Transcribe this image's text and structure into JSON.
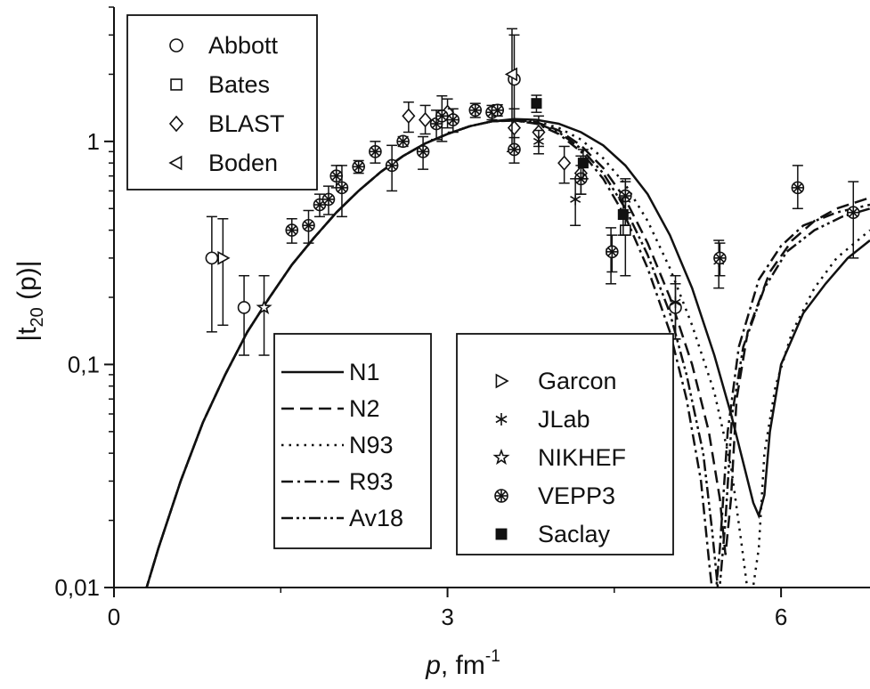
{
  "chart_data": {
    "type": "scatter",
    "title": "",
    "xlabel": {
      "main": "p",
      "sep": ", fm",
      "sup": "-1"
    },
    "ylabel": {
      "pre": "|t",
      "sub": "20",
      "post": " (p)|"
    },
    "xlim": [
      0,
      6.8
    ],
    "ylim": [
      0.01,
      4
    ],
    "yscale": "log",
    "x_ticks": [
      {
        "value": 0,
        "label": "0"
      },
      {
        "value": 3,
        "label": "3"
      },
      {
        "value": 6,
        "label": "6"
      }
    ],
    "y_ticks": [
      {
        "value": 0.01,
        "label": "0,01"
      },
      {
        "value": 0.1,
        "label": "0,1"
      },
      {
        "value": 1,
        "label": "1"
      }
    ],
    "model_legend": [
      {
        "name": "N1",
        "dash": "solid"
      },
      {
        "name": "N2",
        "dash": "dash"
      },
      {
        "name": "N93",
        "dash": "dot"
      },
      {
        "name": "R93",
        "dash": "dashdot"
      },
      {
        "name": "Av18",
        "dash": "dashdotdot"
      }
    ],
    "marker_legend_left": [
      {
        "name": "Abbott",
        "marker": "circle"
      },
      {
        "name": "Bates",
        "marker": "square"
      },
      {
        "name": "BLAST",
        "marker": "diamond"
      },
      {
        "name": "Boden",
        "marker": "triangle-left"
      }
    ],
    "marker_legend_right": [
      {
        "name": "Garcon",
        "marker": "triangle-right"
      },
      {
        "name": "JLab",
        "marker": "asterisk"
      },
      {
        "name": "NIKHEF",
        "marker": "star"
      },
      {
        "name": "VEPP3",
        "marker": "circle-plus"
      },
      {
        "name": "Saclay",
        "marker": "filled-square"
      }
    ],
    "curves": [
      {
        "name": "N1",
        "dash": "solid",
        "points": [
          [
            0.28,
            0.0095
          ],
          [
            0.4,
            0.015
          ],
          [
            0.6,
            0.03
          ],
          [
            0.8,
            0.055
          ],
          [
            1.0,
            0.09
          ],
          [
            1.2,
            0.14
          ],
          [
            1.4,
            0.2
          ],
          [
            1.6,
            0.28
          ],
          [
            1.8,
            0.37
          ],
          [
            2.0,
            0.48
          ],
          [
            2.2,
            0.6
          ],
          [
            2.4,
            0.73
          ],
          [
            2.6,
            0.86
          ],
          [
            2.8,
            0.98
          ],
          [
            3.0,
            1.08
          ],
          [
            3.2,
            1.17
          ],
          [
            3.4,
            1.23
          ],
          [
            3.6,
            1.26
          ],
          [
            3.8,
            1.25
          ],
          [
            4.0,
            1.2
          ],
          [
            4.2,
            1.1
          ],
          [
            4.4,
            0.96
          ],
          [
            4.6,
            0.78
          ],
          [
            4.8,
            0.58
          ],
          [
            5.0,
            0.38
          ],
          [
            5.2,
            0.22
          ],
          [
            5.4,
            0.11
          ],
          [
            5.55,
            0.06
          ],
          [
            5.65,
            0.038
          ],
          [
            5.75,
            0.024
          ],
          [
            5.8,
            0.021
          ],
          [
            5.85,
            0.026
          ],
          [
            5.9,
            0.05
          ],
          [
            6.0,
            0.1
          ],
          [
            6.2,
            0.17
          ],
          [
            6.4,
            0.23
          ],
          [
            6.6,
            0.3
          ],
          [
            6.8,
            0.36
          ]
        ]
      },
      {
        "name": "N2",
        "dash": "dash",
        "points": [
          [
            0.28,
            0.0095
          ],
          [
            0.4,
            0.015
          ],
          [
            0.6,
            0.03
          ],
          [
            0.8,
            0.055
          ],
          [
            1.0,
            0.09
          ],
          [
            1.2,
            0.14
          ],
          [
            1.4,
            0.2
          ],
          [
            1.6,
            0.28
          ],
          [
            1.8,
            0.37
          ],
          [
            2.0,
            0.48
          ],
          [
            2.2,
            0.6
          ],
          [
            2.4,
            0.73
          ],
          [
            2.6,
            0.86
          ],
          [
            2.8,
            0.98
          ],
          [
            3.0,
            1.08
          ],
          [
            3.2,
            1.17
          ],
          [
            3.4,
            1.23
          ],
          [
            3.6,
            1.25
          ],
          [
            3.8,
            1.22
          ],
          [
            4.0,
            1.12
          ],
          [
            4.2,
            0.96
          ],
          [
            4.4,
            0.76
          ],
          [
            4.6,
            0.55
          ],
          [
            4.8,
            0.35
          ],
          [
            5.0,
            0.2
          ],
          [
            5.2,
            0.1
          ],
          [
            5.35,
            0.05
          ],
          [
            5.45,
            0.025
          ],
          [
            5.5,
            0.014
          ],
          [
            5.55,
            0.025
          ],
          [
            5.6,
            0.07
          ],
          [
            5.7,
            0.14
          ],
          [
            5.9,
            0.26
          ],
          [
            6.1,
            0.36
          ],
          [
            6.3,
            0.44
          ],
          [
            6.5,
            0.5
          ],
          [
            6.8,
            0.56
          ]
        ]
      },
      {
        "name": "N93",
        "dash": "dot",
        "points": [
          [
            0.28,
            0.0095
          ],
          [
            0.4,
            0.015
          ],
          [
            0.6,
            0.03
          ],
          [
            0.8,
            0.055
          ],
          [
            1.0,
            0.09
          ],
          [
            1.2,
            0.14
          ],
          [
            1.4,
            0.2
          ],
          [
            1.6,
            0.28
          ],
          [
            1.8,
            0.37
          ],
          [
            2.0,
            0.48
          ],
          [
            2.2,
            0.6
          ],
          [
            2.4,
            0.73
          ],
          [
            2.6,
            0.86
          ],
          [
            2.8,
            0.98
          ],
          [
            3.0,
            1.08
          ],
          [
            3.2,
            1.17
          ],
          [
            3.4,
            1.23
          ],
          [
            3.6,
            1.25
          ],
          [
            3.8,
            1.23
          ],
          [
            4.0,
            1.15
          ],
          [
            4.2,
            1.02
          ],
          [
            4.4,
            0.84
          ],
          [
            4.6,
            0.64
          ],
          [
            4.8,
            0.44
          ],
          [
            5.0,
            0.27
          ],
          [
            5.2,
            0.15
          ],
          [
            5.4,
            0.075
          ],
          [
            5.55,
            0.035
          ],
          [
            5.65,
            0.015
          ],
          [
            5.72,
            0.008
          ],
          [
            5.8,
            0.015
          ],
          [
            5.85,
            0.04
          ],
          [
            5.95,
            0.08
          ],
          [
            6.1,
            0.14
          ],
          [
            6.3,
            0.22
          ],
          [
            6.5,
            0.3
          ],
          [
            6.8,
            0.4
          ]
        ]
      },
      {
        "name": "R93",
        "dash": "dashdot",
        "points": [
          [
            0.28,
            0.0095
          ],
          [
            0.4,
            0.015
          ],
          [
            0.6,
            0.03
          ],
          [
            0.8,
            0.055
          ],
          [
            1.0,
            0.09
          ],
          [
            1.2,
            0.14
          ],
          [
            1.4,
            0.2
          ],
          [
            1.6,
            0.28
          ],
          [
            1.8,
            0.37
          ],
          [
            2.0,
            0.48
          ],
          [
            2.2,
            0.6
          ],
          [
            2.4,
            0.73
          ],
          [
            2.6,
            0.86
          ],
          [
            2.8,
            0.98
          ],
          [
            3.0,
            1.08
          ],
          [
            3.2,
            1.17
          ],
          [
            3.4,
            1.23
          ],
          [
            3.6,
            1.24
          ],
          [
            3.8,
            1.2
          ],
          [
            4.0,
            1.08
          ],
          [
            4.2,
            0.9
          ],
          [
            4.4,
            0.68
          ],
          [
            4.6,
            0.46
          ],
          [
            4.8,
            0.27
          ],
          [
            5.0,
            0.14
          ],
          [
            5.15,
            0.07
          ],
          [
            5.28,
            0.03
          ],
          [
            5.36,
            0.012
          ],
          [
            5.4,
            0.008
          ],
          [
            5.45,
            0.015
          ],
          [
            5.52,
            0.05
          ],
          [
            5.62,
            0.12
          ],
          [
            5.8,
            0.24
          ],
          [
            6.0,
            0.34
          ],
          [
            6.2,
            0.42
          ],
          [
            6.5,
            0.48
          ],
          [
            6.8,
            0.52
          ]
        ]
      },
      {
        "name": "Av18",
        "dash": "dashdotdot",
        "points": [
          [
            0.28,
            0.0095
          ],
          [
            0.4,
            0.015
          ],
          [
            0.6,
            0.03
          ],
          [
            0.8,
            0.055
          ],
          [
            1.0,
            0.09
          ],
          [
            1.2,
            0.14
          ],
          [
            1.4,
            0.2
          ],
          [
            1.6,
            0.28
          ],
          [
            1.8,
            0.37
          ],
          [
            2.0,
            0.48
          ],
          [
            2.2,
            0.6
          ],
          [
            2.4,
            0.73
          ],
          [
            2.6,
            0.86
          ],
          [
            2.8,
            0.98
          ],
          [
            3.0,
            1.08
          ],
          [
            3.2,
            1.17
          ],
          [
            3.4,
            1.23
          ],
          [
            3.6,
            1.24
          ],
          [
            3.8,
            1.21
          ],
          [
            4.0,
            1.1
          ],
          [
            4.2,
            0.93
          ],
          [
            4.4,
            0.72
          ],
          [
            4.6,
            0.5
          ],
          [
            4.8,
            0.31
          ],
          [
            5.0,
            0.17
          ],
          [
            5.15,
            0.09
          ],
          [
            5.3,
            0.04
          ],
          [
            5.38,
            0.018
          ],
          [
            5.44,
            0.009
          ],
          [
            5.5,
            0.02
          ],
          [
            5.56,
            0.06
          ],
          [
            5.66,
            0.12
          ],
          [
            5.85,
            0.22
          ],
          [
            6.05,
            0.32
          ],
          [
            6.3,
            0.4
          ],
          [
            6.55,
            0.46
          ],
          [
            6.8,
            0.5
          ]
        ]
      }
    ],
    "series": [
      {
        "name": "Abbott",
        "marker": "circle",
        "points": [
          [
            0.88,
            0.3,
            0.14,
            0.46
          ],
          [
            1.17,
            0.18,
            0.11,
            0.25
          ],
          [
            3.6,
            1.9,
            0.9,
            3.0
          ],
          [
            5.05,
            0.18,
            0.13,
            0.23
          ]
        ]
      },
      {
        "name": "Bates",
        "marker": "square",
        "points": [
          [
            4.6,
            0.4,
            0.25,
            0.56
          ]
        ]
      },
      {
        "name": "BLAST",
        "marker": "diamond",
        "points": [
          [
            2.65,
            1.3,
            1.1,
            1.5
          ],
          [
            2.8,
            1.25,
            1.08,
            1.45
          ],
          [
            3.0,
            1.35,
            1.15,
            1.55
          ],
          [
            3.6,
            1.15,
            0.9,
            1.4
          ],
          [
            3.82,
            1.1,
            0.95,
            1.3
          ],
          [
            4.05,
            0.8,
            0.65,
            0.95
          ],
          [
            4.2,
            0.72,
            0.58,
            0.86
          ]
        ]
      },
      {
        "name": "Boden",
        "marker": "triangle-left",
        "points": [
          [
            3.58,
            2.0,
            0.9,
            3.2
          ]
        ]
      },
      {
        "name": "Garcon",
        "marker": "triangle-right",
        "points": [
          [
            0.98,
            0.3,
            0.15,
            0.45
          ]
        ]
      },
      {
        "name": "JLab",
        "marker": "asterisk",
        "points": [
          [
            3.82,
            1.0,
            0.88,
            1.12
          ],
          [
            4.15,
            0.55,
            0.42,
            0.68
          ],
          [
            4.47,
            0.32,
            0.23,
            0.41
          ],
          [
            4.6,
            0.55,
            0.42,
            0.68
          ],
          [
            5.05,
            0.19,
            0.13,
            0.25
          ],
          [
            5.44,
            0.29,
            0.22,
            0.36
          ]
        ]
      },
      {
        "name": "NIKHEF",
        "marker": "star",
        "points": [
          [
            1.35,
            0.18,
            0.11,
            0.25
          ]
        ]
      },
      {
        "name": "VEPP3",
        "marker": "circle-plus",
        "points": [
          [
            1.6,
            0.4,
            0.35,
            0.45
          ],
          [
            1.75,
            0.42,
            0.35,
            0.49
          ],
          [
            1.85,
            0.52,
            0.46,
            0.58
          ],
          [
            1.93,
            0.55,
            0.47,
            0.63
          ],
          [
            2.0,
            0.7,
            0.62,
            0.78
          ],
          [
            2.05,
            0.62,
            0.46,
            0.78
          ],
          [
            2.2,
            0.77,
            0.72,
            0.82
          ],
          [
            2.35,
            0.9,
            0.8,
            1.0
          ],
          [
            2.5,
            0.78,
            0.6,
            0.96
          ],
          [
            2.6,
            1.0,
            0.95,
            1.05
          ],
          [
            2.78,
            0.9,
            0.75,
            1.05
          ],
          [
            2.9,
            1.2,
            1.02,
            1.38
          ],
          [
            2.95,
            1.3,
            1.0,
            1.6
          ],
          [
            3.05,
            1.25,
            1.1,
            1.4
          ],
          [
            3.25,
            1.38,
            1.28,
            1.48
          ],
          [
            3.4,
            1.35,
            1.25,
            1.45
          ],
          [
            3.45,
            1.38,
            1.3,
            1.46
          ],
          [
            3.6,
            0.92,
            0.8,
            1.04
          ],
          [
            4.2,
            0.68,
            0.58,
            0.78
          ],
          [
            4.48,
            0.32,
            0.26,
            0.38
          ],
          [
            4.6,
            0.57,
            0.48,
            0.66
          ],
          [
            5.45,
            0.3,
            0.25,
            0.35
          ],
          [
            6.15,
            0.62,
            0.5,
            0.78
          ],
          [
            6.65,
            0.48,
            0.3,
            0.66
          ]
        ]
      },
      {
        "name": "Saclay",
        "marker": "filled-square",
        "points": [
          [
            3.8,
            1.48,
            1.35,
            1.61
          ],
          [
            4.22,
            0.8,
            0.68,
            0.92
          ],
          [
            4.58,
            0.47,
            0.38,
            0.56
          ]
        ]
      }
    ]
  }
}
